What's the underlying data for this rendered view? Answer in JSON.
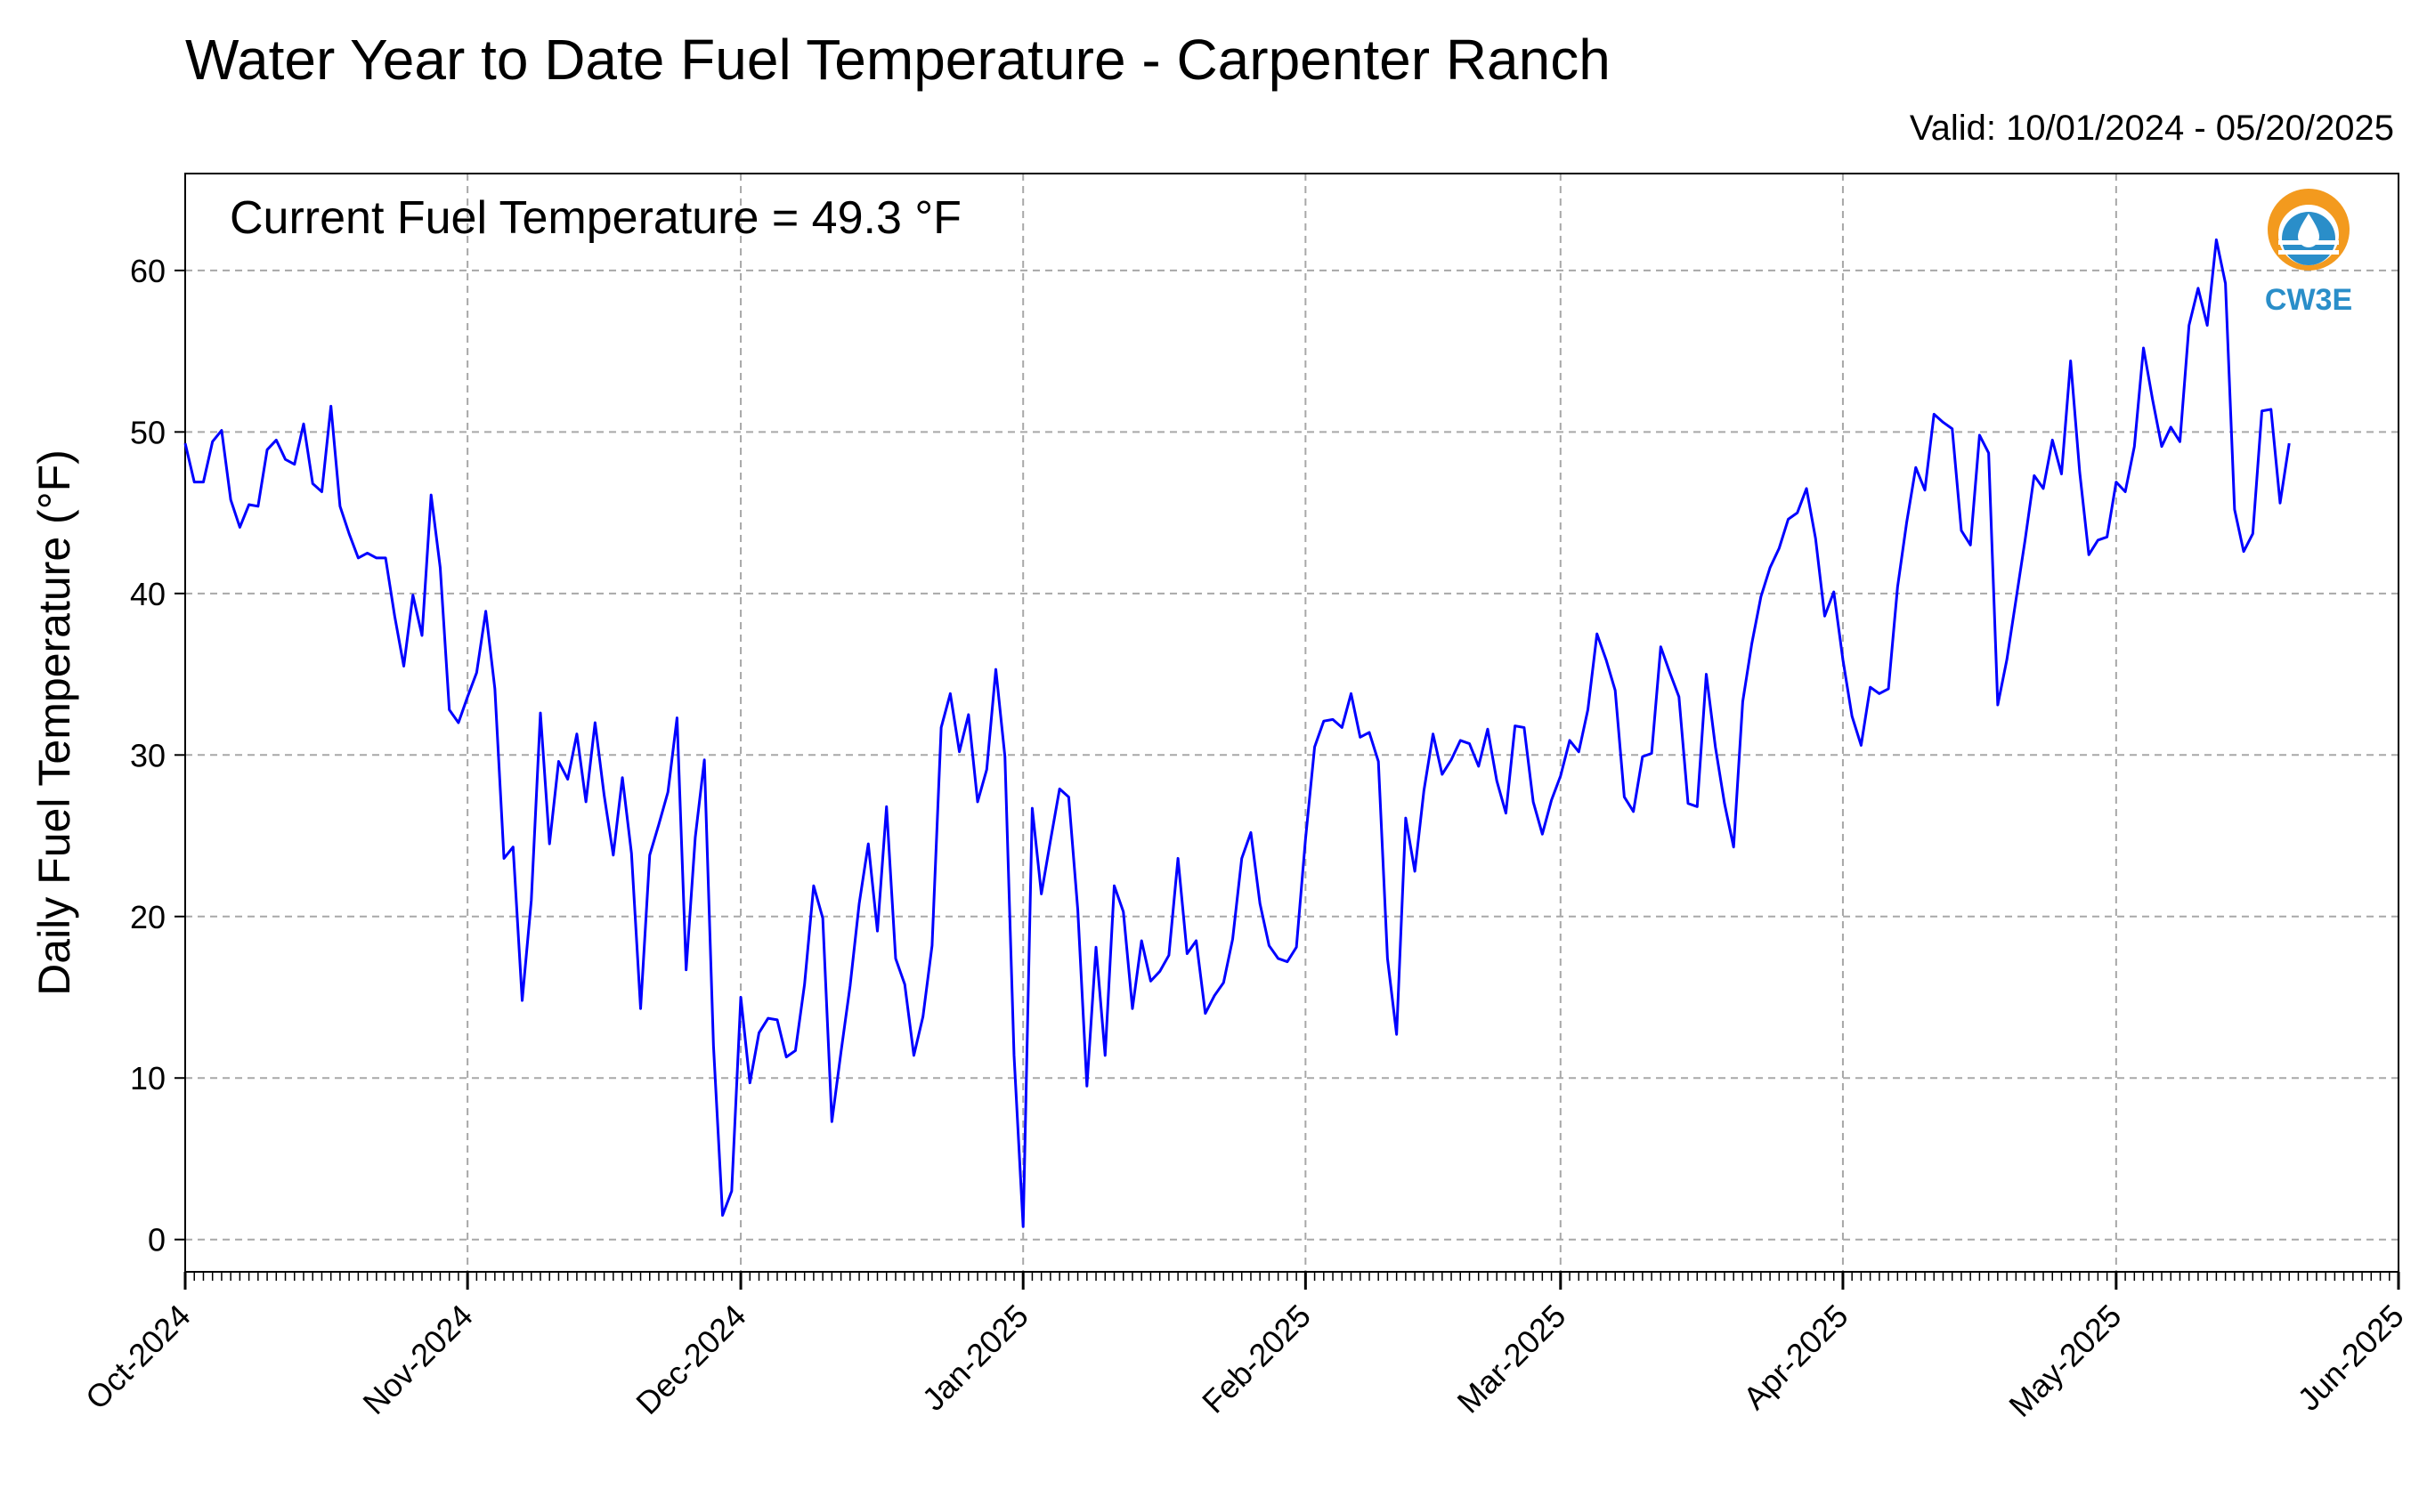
{
  "title": "Water Year to Date Fuel Temperature - Carpenter Ranch",
  "valid_text": "Valid: 10/01/2024 - 05/20/2025",
  "logo": {
    "text": "CW3E",
    "icon": "cw3e-logo-icon",
    "colors": {
      "orange": "#f39a1e",
      "blue": "#2a8ec9"
    }
  },
  "chart_data": {
    "type": "line",
    "title": "Water Year to Date Fuel Temperature - Carpenter Ranch",
    "ylabel": "Daily Fuel Temperature (°F)",
    "xlabel": "",
    "annotation": "Current Fuel Temperature = 49.3 °F",
    "ylim": [
      -2,
      66
    ],
    "yticks": [
      0,
      10,
      20,
      30,
      40,
      50,
      60
    ],
    "xlim": [
      "2024-10-01",
      "2025-06-01"
    ],
    "xticks": [
      {
        "date": "2024-10-01",
        "label": "Oct-2024"
      },
      {
        "date": "2024-11-01",
        "label": "Nov-2024"
      },
      {
        "date": "2024-12-01",
        "label": "Dec-2024"
      },
      {
        "date": "2025-01-01",
        "label": "Jan-2025"
      },
      {
        "date": "2025-02-01",
        "label": "Feb-2025"
      },
      {
        "date": "2025-03-01",
        "label": "Mar-2025"
      },
      {
        "date": "2025-04-01",
        "label": "Apr-2025"
      },
      {
        "date": "2025-05-01",
        "label": "May-2025"
      },
      {
        "date": "2025-06-01",
        "label": "Jun-2025"
      }
    ],
    "grid": true,
    "line_color": "#0000ff",
    "start_date": "2024-10-01",
    "values": [
      49.3,
      46.9,
      46.9,
      49.4,
      50.1,
      45.8,
      44.1,
      45.5,
      45.4,
      48.9,
      49.5,
      48.3,
      48.0,
      50.5,
      46.8,
      46.3,
      51.6,
      45.4,
      43.7,
      42.2,
      42.5,
      42.2,
      42.2,
      38.6,
      35.5,
      39.9,
      37.4,
      46.1,
      41.6,
      32.8,
      32.0,
      33.6,
      35.1,
      38.9,
      34.1,
      23.6,
      24.3,
      14.8,
      21.0,
      32.6,
      24.5,
      29.6,
      28.5,
      31.3,
      27.1,
      32.0,
      27.5,
      23.8,
      28.6,
      23.9,
      14.3,
      23.8,
      25.7,
      27.7,
      32.3,
      16.7,
      24.9,
      29.7,
      12.0,
      1.5,
      3.0,
      15.0,
      9.7,
      12.8,
      13.7,
      13.6,
      11.3,
      11.7,
      15.8,
      21.9,
      19.9,
      7.3,
      11.6,
      15.7,
      20.8,
      24.5,
      19.1,
      26.8,
      17.4,
      15.8,
      11.4,
      13.8,
      18.2,
      31.7,
      33.8,
      30.2,
      32.5,
      27.1,
      29.1,
      35.3,
      29.9,
      11.4,
      0.8,
      26.7,
      21.4,
      24.7,
      27.9,
      27.4,
      20.4,
      9.5,
      18.1,
      11.4,
      21.9,
      20.3,
      14.3,
      18.5,
      16.0,
      16.6,
      17.6,
      23.6,
      17.7,
      18.5,
      14.0,
      15.1,
      15.9,
      18.6,
      23.6,
      25.2,
      20.8,
      18.2,
      17.4,
      17.2,
      18.1,
      24.8,
      30.5,
      32.1,
      32.2,
      31.7,
      33.8,
      31.1,
      31.4,
      29.6,
      17.4,
      12.7,
      26.1,
      22.8,
      27.8,
      31.3,
      28.8,
      29.7,
      30.9,
      30.7,
      29.3,
      31.6,
      28.4,
      26.4,
      31.8,
      31.7,
      27.1,
      25.1,
      27.2,
      28.7,
      30.9,
      30.2,
      32.8,
      37.5,
      35.9,
      34.0,
      27.4,
      26.5,
      29.9,
      30.1,
      36.7,
      35.1,
      33.6,
      27.0,
      26.8,
      35.0,
      30.5,
      27.0,
      24.3,
      33.3,
      36.9,
      39.8,
      41.6,
      42.8,
      44.6,
      45.0,
      46.5,
      43.4,
      38.6,
      40.1,
      35.9,
      32.4,
      30.6,
      34.2,
      33.8,
      34.1,
      40.4,
      44.4,
      47.8,
      46.4,
      51.1,
      50.6,
      50.2,
      43.9,
      43.0,
      49.8,
      48.7,
      33.1,
      35.9,
      39.6,
      43.3,
      47.3,
      46.5,
      49.5,
      47.4,
      54.4,
      47.5,
      42.4,
      43.3,
      43.5,
      46.9,
      46.3,
      49.1,
      55.2,
      52.0,
      49.1,
      50.3,
      49.4,
      56.6,
      58.9,
      56.6,
      61.9,
      59.2,
      45.2,
      42.6,
      43.7,
      51.3,
      51.4,
      45.6,
      49.3
    ]
  }
}
